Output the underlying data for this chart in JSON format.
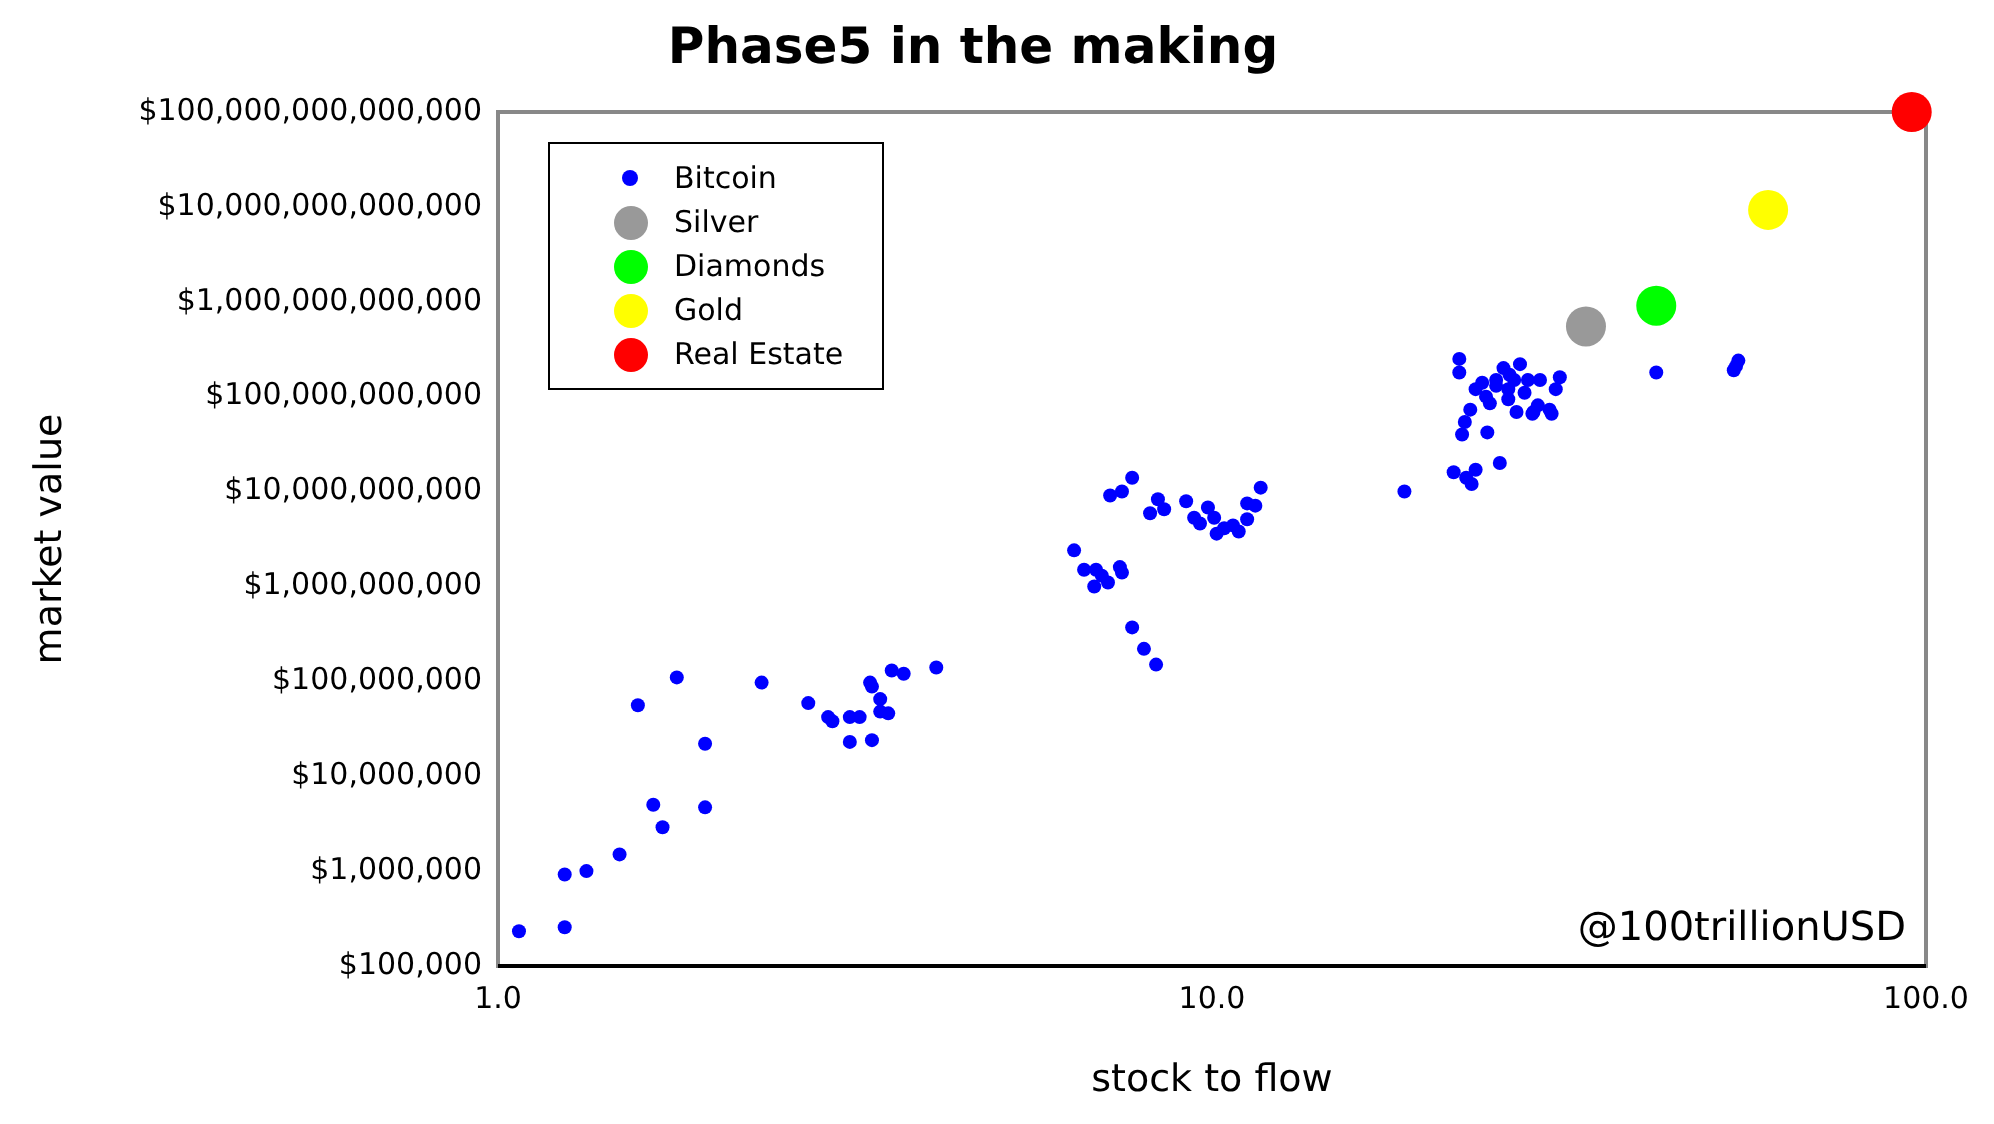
{
  "chart_data": {
    "type": "scatter",
    "title": "Phase5 in the making",
    "xlabel": "stock to flow",
    "ylabel": "market value",
    "log": "xy",
    "grid": false,
    "legend": "top left",
    "marker": "circle",
    "xlim": [
      1,
      100
    ],
    "xticks": [
      {
        "value": 1,
        "label": "1.0"
      },
      {
        "value": 10,
        "label": "10.0"
      },
      {
        "value": 100,
        "label": "100.0"
      }
    ],
    "ylim": [
      100000,
      100000000000000
    ],
    "yticks": [
      {
        "value": 100000,
        "label": "$100,000"
      },
      {
        "value": 1000000,
        "label": "$1,000,000"
      },
      {
        "value": 10000000,
        "label": "$10,000,000"
      },
      {
        "value": 100000000,
        "label": "$100,000,000"
      },
      {
        "value": 1000000000,
        "label": "$1,000,000,000"
      },
      {
        "value": 10000000000,
        "label": "$10,000,000,000"
      },
      {
        "value": 100000000000,
        "label": "$100,000,000,000"
      },
      {
        "value": 1000000000000,
        "label": "$1,000,000,000,000"
      },
      {
        "value": 10000000000000,
        "label": "$10,000,000,000,000"
      },
      {
        "value": 100000000000000,
        "label": "$100,000,000,000,000"
      }
    ],
    "annotations": [
      "@100trillionUSD"
    ],
    "series": [
      {
        "name": "Bitcoin",
        "color": "#0000ff",
        "x": [
          1.07,
          1.24,
          1.24,
          1.33,
          1.48,
          1.65,
          1.7,
          1.57,
          1.78,
          1.95,
          1.95,
          2.34,
          2.72,
          2.9,
          2.94,
          3.11,
          3.11,
          3.21,
          3.34,
          3.32,
          3.34,
          3.43,
          3.43,
          3.52,
          3.56,
          3.7,
          4.11,
          6.41,
          6.62,
          6.88,
          6.84,
          7.01,
          7.15,
          7.43,
          7.48,
          7.73,
          8.03,
          8.35,
          7.2,
          7.48,
          7.73,
          8.19,
          8.4,
          8.57,
          9.2,
          9.44,
          9.62,
          9.87,
          10.07,
          10.15,
          10.4,
          10.7,
          10.9,
          11.2,
          11.2,
          11.5,
          11.7,
          18.6,
          21.8,
          22.7,
          23.1,
          23.4,
          22.4,
          22.6,
          23.0,
          23.4,
          22.2,
          22.2,
          24.3,
          24.5,
          25.3,
          24.2,
          23.9,
          25.0,
          25.6,
          26.1,
          26.0,
          26.7,
          26.5,
          27.0,
          27.7,
          28.2,
          28.8,
          28.6,
          25.0,
          28.1,
          29.7,
          30.3,
          30.7,
          29.9,
          41.9,
          53.8,
          54.6,
          54.2,
          26.0,
          27.4
        ],
        "values": [
          232000.0,
          256000.0,
          920000.0,
          1000000.0,
          1500000.0,
          5000000.0,
          2900000.0,
          56000000.0,
          110000000.0,
          22000000.0,
          4700000.0,
          97000000.0,
          59000000.0,
          42000000.0,
          38000000.0,
          42000000.0,
          23000000.0,
          42000000.0,
          24000000.0,
          97000000.0,
          88000000.0,
          65000000.0,
          48000000.0,
          46000000.0,
          130000000.0,
          120000000.0,
          140000000.0,
          2400000000.0,
          1500000000.0,
          1500000000.0,
          1000000000.0,
          1300000000.0,
          1100000000.0,
          1600000000.0,
          1400000000.0,
          370000000.0,
          220000000.0,
          150000000.0,
          9100000000.0,
          10000000000.0,
          14000000000.0,
          5900000000.0,
          8300000000.0,
          6500000000.0,
          7900000000.0,
          5300000000.0,
          4600000000.0,
          6800000000.0,
          5300000000.0,
          3600000000.0,
          4100000000.0,
          4400000000.0,
          3800000000.0,
          5100000000.0,
          7500000000.0,
          7100000000.0,
          11000000000.0,
          10000000000.0,
          16000000000.0,
          14000000000.0,
          12000000000.0,
          17000000000.0,
          40000000000.0,
          54000000000.0,
          73000000000.0,
          120000000000.0,
          180000000000.0,
          250000000000.0,
          42000000000.0,
          85000000000.0,
          20000000000.0,
          100000000000.0,
          140000000000.0,
          130000000000.0,
          200000000000.0,
          170000000000.0,
          120000000000.0,
          69000000000.0,
          150000000000.0,
          220000000000.0,
          150000000000.0,
          69000000000.0,
          150000000000.0,
          81000000000.0,
          150000000000.0,
          66000000000.0,
          73000000000.0,
          120000000000.0,
          160000000000.0,
          66000000000.0,
          180000000000.0,
          190000000000.0,
          240000000000.0,
          210000000000.0,
          94000000000.0,
          110000000000.0
        ]
      },
      {
        "name": "Silver",
        "color": "#999999",
        "x": [
          33.4
        ],
        "values": [
          550000000000.0
        ]
      },
      {
        "name": "Diamonds",
        "color": "#00ff00",
        "x": [
          41.9
        ],
        "values": [
          910000000000.0
        ]
      },
      {
        "name": "Gold",
        "color": "#ffff00",
        "x": [
          60.1
        ],
        "values": [
          9300000000000.0
        ]
      },
      {
        "name": "Real Estate",
        "color": "#ff0000",
        "x": [
          95.5
        ],
        "values": [
          100000000000000.0
        ]
      }
    ]
  }
}
